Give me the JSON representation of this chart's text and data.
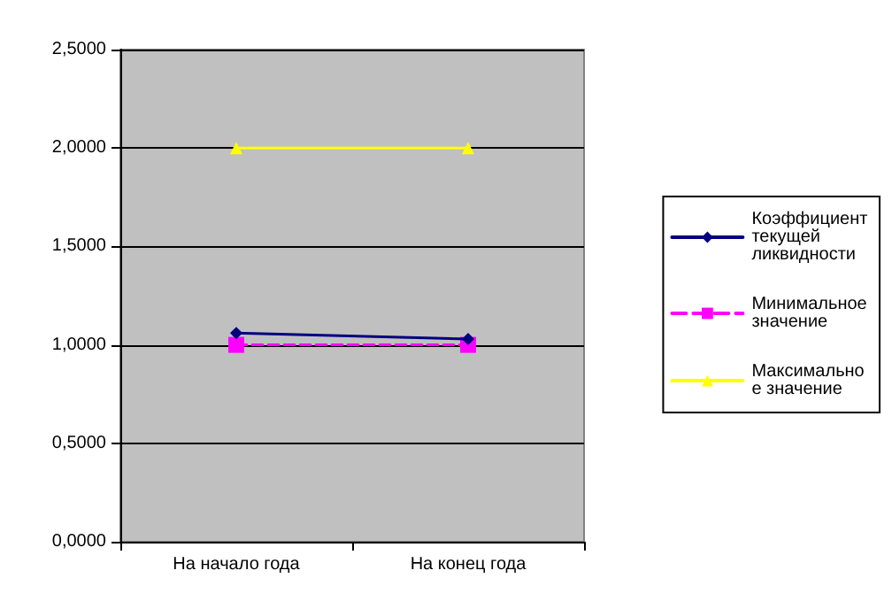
{
  "chart_data": {
    "type": "line",
    "categories": [
      "На начало года",
      "На конец года"
    ],
    "series": [
      {
        "name": "Коэффициент текущей ликвидности",
        "color": "#000080",
        "values": [
          1.06,
          1.03
        ],
        "marker": "diamond",
        "line_style": "solid"
      },
      {
        "name": "Минимальное значение",
        "color": "#ff00ff",
        "values": [
          1.0,
          1.0
        ],
        "marker": "square",
        "line_style": "dashed"
      },
      {
        "name": "Максимальное значение",
        "color": "#ffff00",
        "values": [
          2.0,
          2.0
        ],
        "marker": "triangle",
        "line_style": "solid"
      }
    ],
    "ylim": [
      0,
      2.5
    ],
    "yticks": [
      {
        "value": 0,
        "label": "0,0000"
      },
      {
        "value": 0.5,
        "label": "0,5000"
      },
      {
        "value": 1,
        "label": "1,0000"
      },
      {
        "value": 1.5,
        "label": "1,5000"
      },
      {
        "value": 2,
        "label": "2,0000"
      },
      {
        "value": 2.5,
        "label": "2,5000"
      }
    ],
    "grid": "y",
    "legend": "right"
  }
}
